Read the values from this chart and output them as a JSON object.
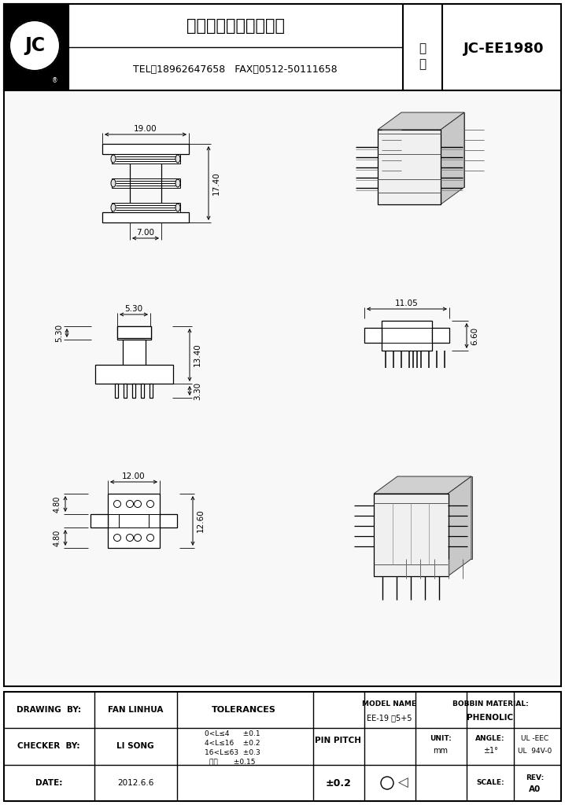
{
  "title_company": "昆山佳诚电子有限公司",
  "title_contact": "TEL：18962647658   FAX：0512-50111658",
  "model_label": "型\n号",
  "model_number": "JC-EE1980",
  "bg_color": "#ffffff",
  "line_color": "#000000",
  "drawing_by": "DRAWING  BY:",
  "drawing_name": "FAN LINHUA",
  "checker_by": "CHECKER  BY:",
  "checker_name": "LI SONG",
  "date_label": "DATE:",
  "date_value": "2012.6.6",
  "tolerances_title": "TOLERANCES",
  "tol1": "0<L≤4      ±0.1",
  "tol2": "4<L≤16    ±0.2",
  "tol3": "16<L≤63  ±0.3",
  "tol4": "壁厚       ±0.15",
  "pin_pitch_label": "PIN PITCH",
  "pin_pitch_value": "±0.2",
  "model_name_label": "MODEL NAME",
  "model_name_value": "EE-19 品5+5",
  "bobbin_label": "BOBBIN MATERIAL:",
  "bobbin_value": "PHENOLIC",
  "unit_label": "UNIT:",
  "unit_value": "mm",
  "angle_label": "ANGLE:",
  "angle_value": "±1°",
  "ul_label": "UL -EEC",
  "ul_value": "UL  94V-0",
  "scale_label": "SCALE:",
  "rev_label": "REV:",
  "rev_value": "A0",
  "dim_19": "19.00",
  "dim_17_4": "17.40",
  "dim_7": "7.00",
  "dim_5_3a": "5.30",
  "dim_5_3b": "5.30",
  "dim_13_4": "13.40",
  "dim_3_3": "3.30",
  "dim_12": "12.00",
  "dim_4_8a": "4.80",
  "dim_4_8b": "4.80",
  "dim_12_6": "12.60",
  "dim_11_05": "11.05",
  "dim_6_6": "6.60"
}
